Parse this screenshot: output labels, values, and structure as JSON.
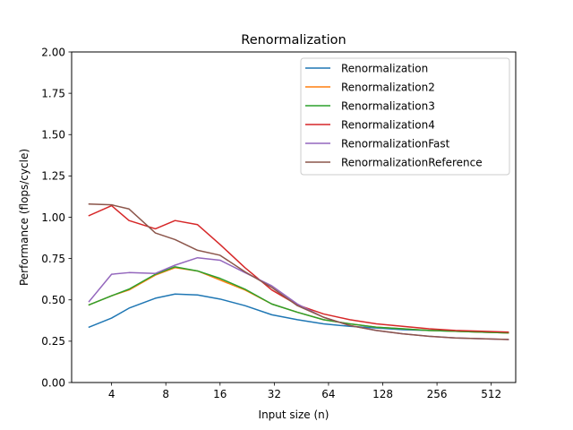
{
  "chart_data": {
    "type": "line",
    "title": "Renormalization",
    "xlabel": "Input size (n)",
    "ylabel": "Performance (flops/cycle)",
    "x_scale": "log2",
    "xlim": [
      2.4,
      700
    ],
    "ylim": [
      0,
      2.0
    ],
    "x_ticks": [
      4,
      8,
      16,
      32,
      64,
      128,
      256,
      512
    ],
    "x_tick_labels": [
      "4",
      "8",
      "16",
      "32",
      "64",
      "128",
      "256",
      "512"
    ],
    "y_ticks": [
      0,
      0.25,
      0.5,
      0.75,
      1.0,
      1.25,
      1.5,
      1.75,
      2.0
    ],
    "y_tick_labels": [
      "0.00",
      "0.25",
      "0.50",
      "0.75",
      "1.00",
      "1.25",
      "1.50",
      "1.75",
      "2.00"
    ],
    "grid": false,
    "legend_position": "upper right",
    "x": [
      3,
      4,
      5,
      7,
      9,
      12,
      16,
      22,
      31,
      43,
      60,
      84,
      118,
      165,
      231,
      324,
      454,
      636
    ],
    "series": [
      {
        "name": "Renormalization",
        "color": "#1f77b4",
        "values": [
          0.335,
          0.39,
          0.45,
          0.51,
          0.535,
          0.53,
          0.505,
          0.465,
          0.41,
          0.38,
          0.355,
          0.34,
          0.33,
          0.32,
          0.315,
          0.31,
          0.305,
          0.3
        ]
      },
      {
        "name": "Renormalization2",
        "color": "#ff7f0e",
        "values": [
          0.47,
          0.525,
          0.56,
          0.65,
          0.695,
          0.675,
          0.62,
          0.56,
          0.475,
          0.425,
          0.38,
          0.355,
          0.335,
          0.325,
          0.315,
          0.31,
          0.305,
          0.3
        ]
      },
      {
        "name": "Renormalization3",
        "color": "#2ca02c",
        "values": [
          0.47,
          0.525,
          0.565,
          0.655,
          0.7,
          0.675,
          0.63,
          0.565,
          0.475,
          0.425,
          0.38,
          0.355,
          0.335,
          0.325,
          0.315,
          0.31,
          0.305,
          0.3
        ]
      },
      {
        "name": "Renormalization4",
        "color": "#d62728",
        "values": [
          1.01,
          1.07,
          0.98,
          0.93,
          0.98,
          0.955,
          0.835,
          0.695,
          0.56,
          0.47,
          0.415,
          0.38,
          0.355,
          0.34,
          0.325,
          0.315,
          0.31,
          0.305
        ]
      },
      {
        "name": "RenormalizationFast",
        "color": "#9467bd",
        "values": [
          0.49,
          0.655,
          0.665,
          0.66,
          0.71,
          0.755,
          0.74,
          0.665,
          0.585,
          0.475,
          0.395,
          0.345,
          0.315,
          0.295,
          0.28,
          0.27,
          0.265,
          0.26
        ]
      },
      {
        "name": "RenormalizationReference",
        "color": "#8c564b",
        "values": [
          1.08,
          1.075,
          1.05,
          0.905,
          0.865,
          0.8,
          0.77,
          0.67,
          0.575,
          0.465,
          0.395,
          0.345,
          0.315,
          0.295,
          0.28,
          0.27,
          0.265,
          0.26
        ]
      }
    ]
  }
}
